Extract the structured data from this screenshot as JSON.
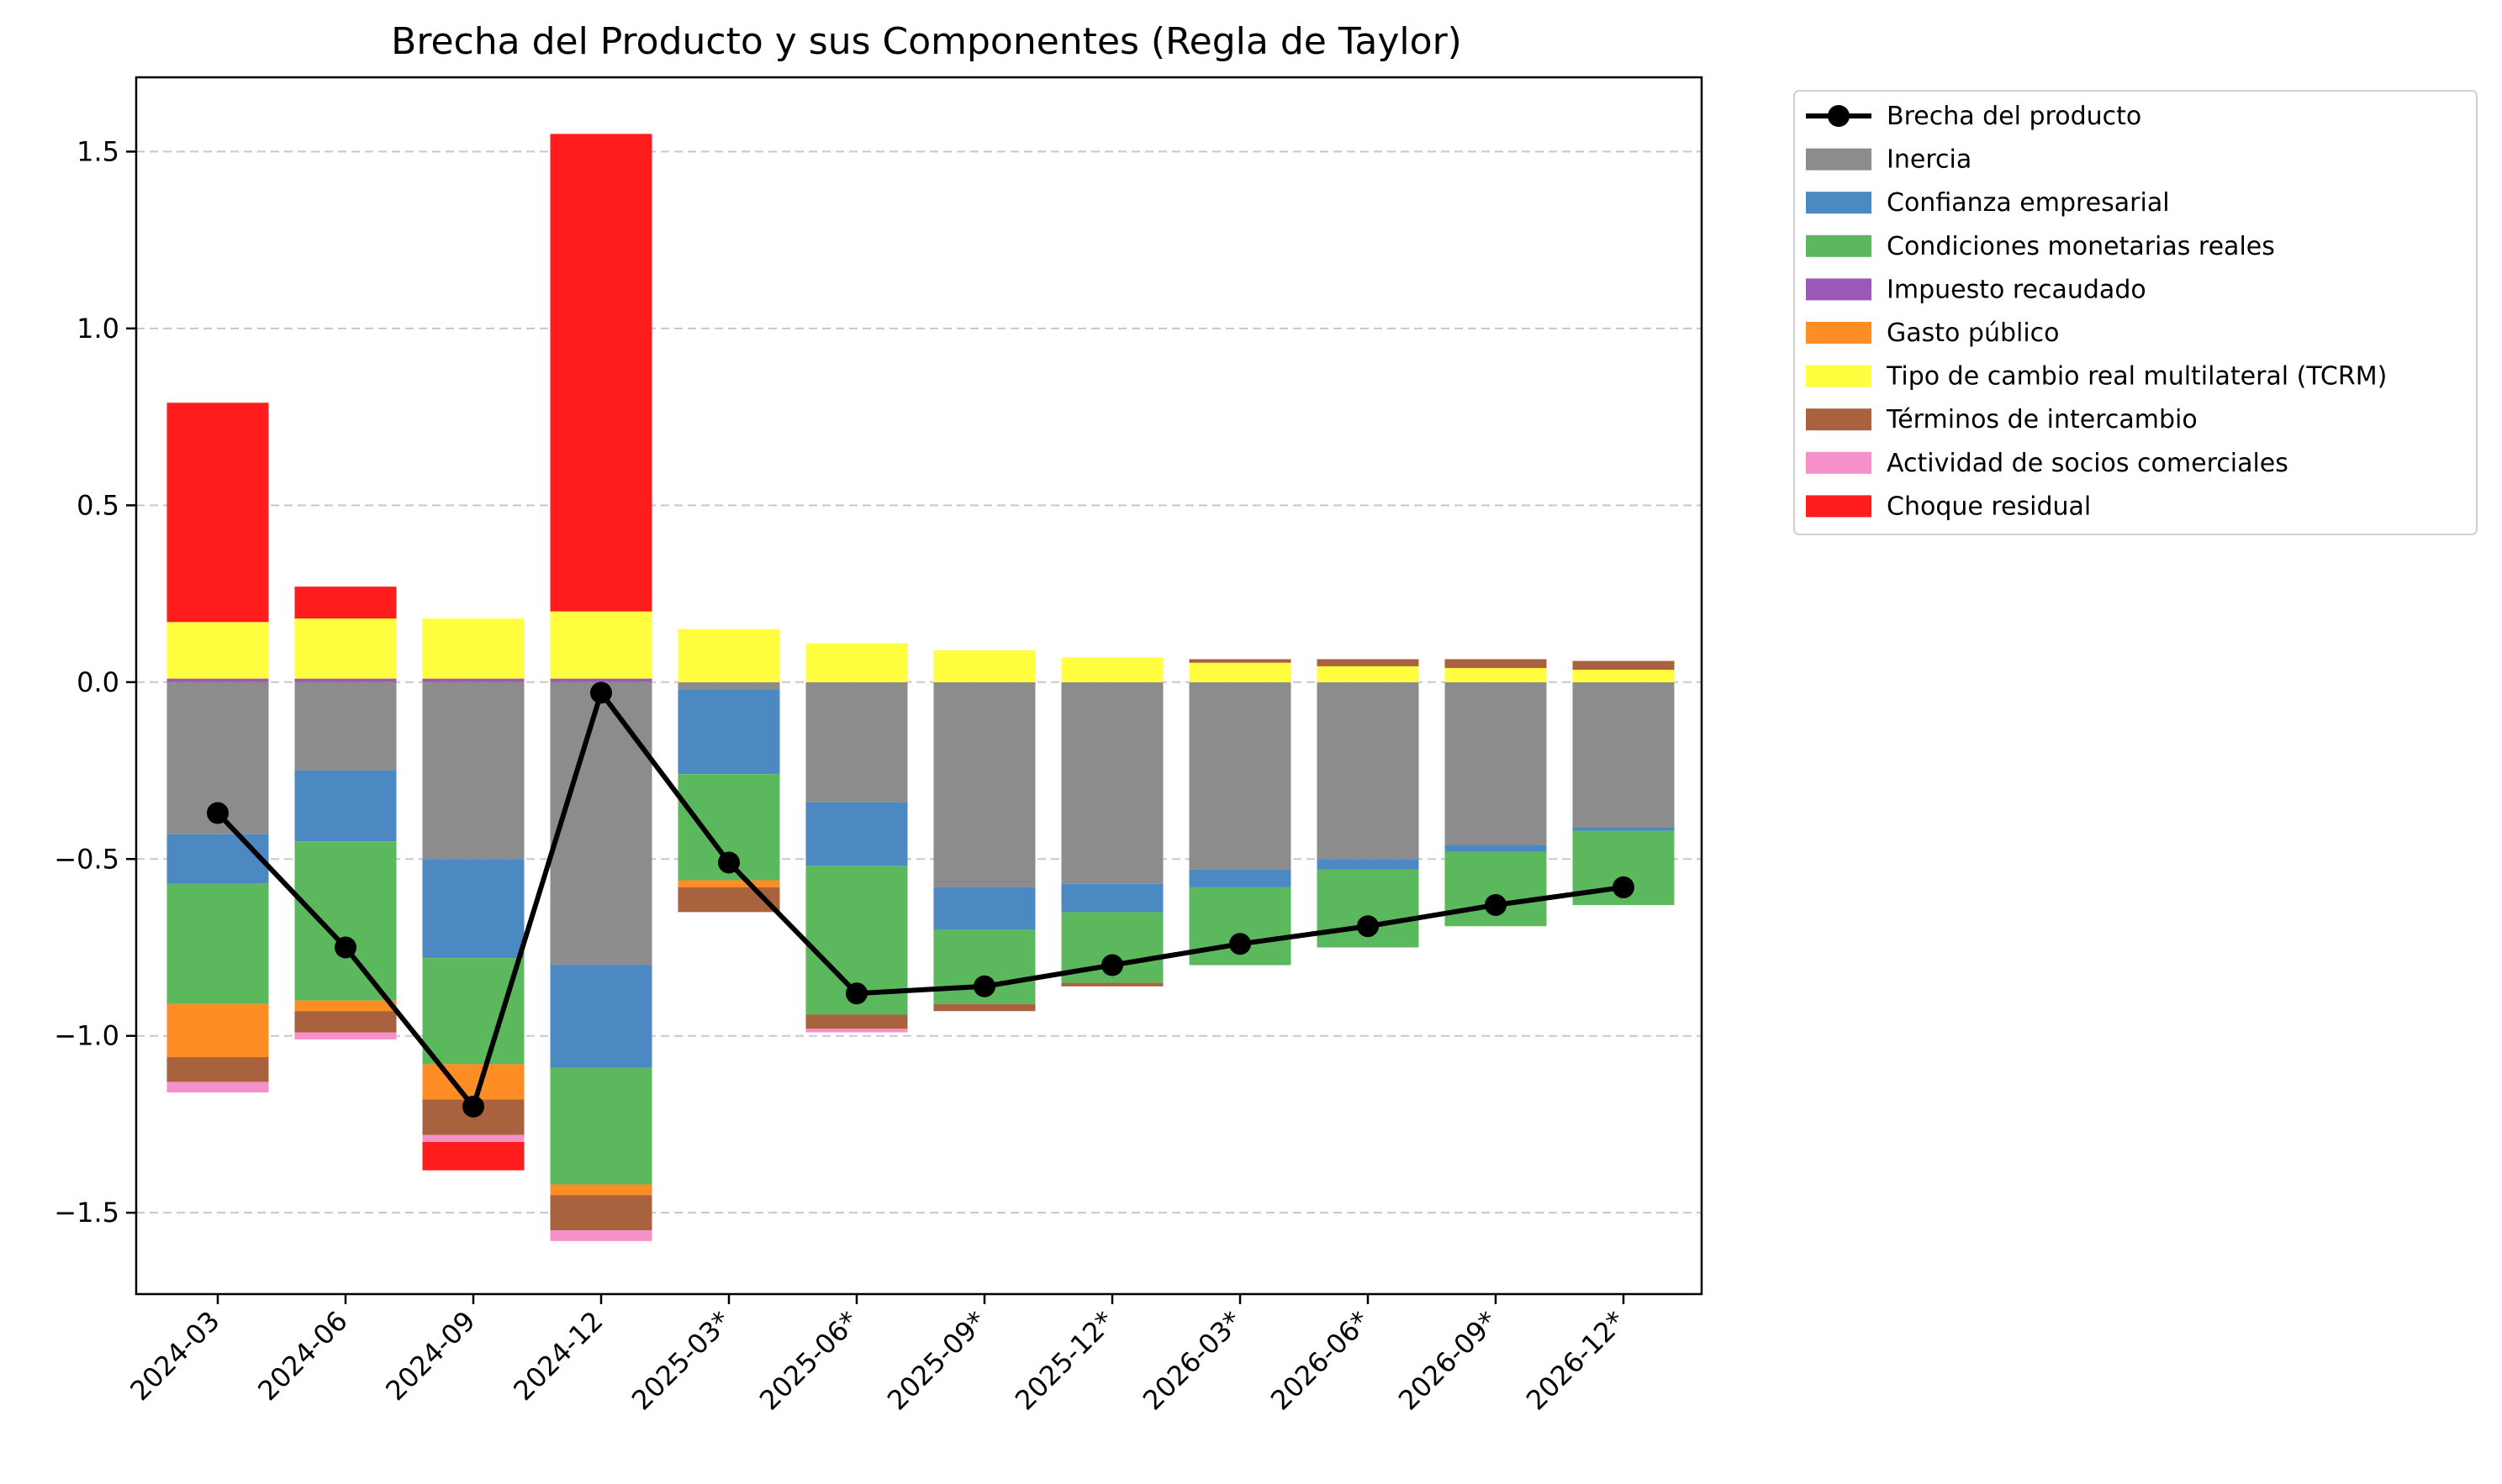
{
  "chart_data": {
    "type": "bar",
    "stacked": true,
    "title": "Brecha del Producto y sus Componentes (Regla de Taylor)",
    "xlabel": "",
    "ylabel": "",
    "ylim": [
      -1.73,
      1.71
    ],
    "yticks": [
      1.5,
      1.0,
      0.5,
      0.0,
      -0.5,
      -1.0,
      -1.5
    ],
    "ytick_labels": [
      "1.5",
      "1.0",
      "0.5",
      "0.0",
      "−0.5",
      "−1.0",
      "−1.5"
    ],
    "grid": "horizontal dashed",
    "legend_position": "outside-top-right",
    "categories": [
      "2024-03",
      "2024-06",
      "2024-09",
      "2024-12",
      "2025-03*",
      "2025-06*",
      "2025-09*",
      "2025-12*",
      "2026-03*",
      "2026-06*",
      "2026-09*",
      "2026-12*"
    ],
    "series": [
      {
        "name": "Inercia",
        "color": "#8c8c8c",
        "values": [
          -0.43,
          -0.25,
          -0.5,
          -0.8,
          -0.02,
          -0.34,
          -0.58,
          -0.57,
          -0.53,
          -0.5,
          -0.46,
          -0.41
        ]
      },
      {
        "name": "Confianza empresarial",
        "color": "#4c89c3",
        "values": [
          -0.14,
          -0.2,
          -0.28,
          -0.29,
          -0.24,
          -0.18,
          -0.12,
          -0.08,
          -0.05,
          -0.03,
          -0.02,
          -0.01
        ]
      },
      {
        "name": "Condiciones monetarias reales",
        "color": "#5cb85c",
        "values": [
          -0.34,
          -0.45,
          -0.3,
          -0.33,
          -0.3,
          -0.42,
          -0.21,
          -0.2,
          -0.22,
          -0.22,
          -0.21,
          -0.21
        ]
      },
      {
        "name": "Impuesto recaudado",
        "color": "#9b59b6",
        "values": [
          0.01,
          0.01,
          0.01,
          0.01,
          0.0,
          0.0,
          0.0,
          0.0,
          0.0,
          0.0,
          0.0,
          0.0
        ]
      },
      {
        "name": "Gasto público",
        "color": "#fd8d24",
        "values": [
          -0.15,
          -0.03,
          -0.1,
          -0.03,
          -0.02,
          0.0,
          0.0,
          0.0,
          0.0,
          0.0,
          0.0,
          0.0
        ]
      },
      {
        "name": "Tipo de cambio real multilateral (TCRM)",
        "color": "#ffff40",
        "values": [
          0.16,
          0.17,
          0.17,
          0.19,
          0.15,
          0.11,
          0.09,
          0.07,
          0.055,
          0.045,
          0.04,
          0.035
        ]
      },
      {
        "name": "Términos de intercambio",
        "color": "#a8623e",
        "values": [
          -0.07,
          -0.06,
          -0.1,
          -0.1,
          -0.07,
          -0.04,
          -0.02,
          -0.01,
          0.01,
          0.02,
          0.025,
          0.025
        ]
      },
      {
        "name": "Actividad de socios comerciales",
        "color": "#f590c8",
        "values": [
          -0.03,
          -0.02,
          -0.02,
          -0.03,
          0.0,
          -0.01,
          0.0,
          0.0,
          0.0,
          0.0,
          0.0,
          0.0
        ]
      },
      {
        "name": "Choque residual",
        "color": "#ff1c1c",
        "values": [
          0.62,
          0.09,
          -0.08,
          1.35,
          0.0,
          0.0,
          0.0,
          0.0,
          0.0,
          0.0,
          0.0,
          0.0
        ]
      }
    ],
    "line": {
      "name": "Brecha del producto",
      "color": "#000000",
      "values": [
        -0.37,
        -0.75,
        -1.2,
        -0.03,
        -0.51,
        -0.88,
        -0.86,
        -0.8,
        -0.74,
        -0.69,
        -0.63,
        -0.58
      ]
    }
  }
}
